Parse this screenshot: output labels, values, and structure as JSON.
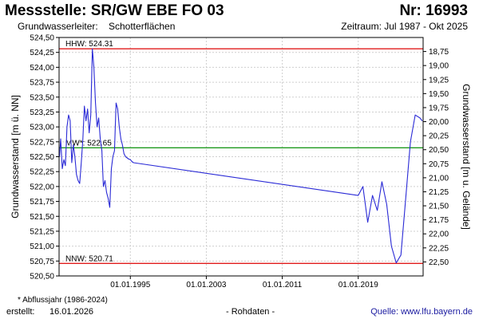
{
  "header": {
    "title": "Messstelle: SR/GW EBE FO 03",
    "station_no": "Nr: 16993",
    "aquifer_label": "Grundwasserleiter:",
    "aquifer_value": "Schotterflächen",
    "period": "Zeitraum: Jul 1987 - Okt 2025"
  },
  "footer": {
    "footnote": "* Abflussjahr (1986-2024)",
    "created_label": "erstellt:",
    "created_date": "16.01.2026",
    "data_type": "- Rohdaten -",
    "source": "Quelle: www.lfu.bayern.de"
  },
  "colors": {
    "series": "#2a2ad6",
    "hhw": "#e01b1b",
    "nnw": "#e01b1b",
    "mw": "#1f9a1f",
    "grid": "#cfcfcf",
    "axis": "#000000"
  },
  "chart_data": {
    "type": "line",
    "title": "",
    "ylabel": "Grundwasserstand [m ü. NN]",
    "ylabel_right": "Grundwasserstand [m u. Gelände]",
    "xlabel": "",
    "xlim": [
      "1987-07-01",
      "2025-10-31"
    ],
    "ylim": [
      520.5,
      524.5
    ],
    "ylim_right_depth": [
      22.75,
      18.5
    ],
    "grid": true,
    "y_ticks": [
      "524,50",
      "524,25",
      "524,00",
      "523,75",
      "523,50",
      "523,25",
      "523,00",
      "522,75",
      "522,50",
      "522,25",
      "522,00",
      "521,75",
      "521,50",
      "521,25",
      "521,00",
      "520,75",
      "520,50"
    ],
    "y_right_ticks": [
      "18,75",
      "19,00",
      "19,25",
      "19,50",
      "19,75",
      "20,00",
      "20,25",
      "20,50",
      "20,75",
      "21,00",
      "21,25",
      "21,50",
      "21,75",
      "22,00",
      "22,25",
      "22,50"
    ],
    "x_ticks": [
      {
        "date": "1995-01-01",
        "label": "01.01.1995"
      },
      {
        "date": "2003-01-01",
        "label": "01.01.2003"
      },
      {
        "date": "2011-01-01",
        "label": "01.01.2011"
      },
      {
        "date": "2019-01-01",
        "label": "01.01.2019"
      }
    ],
    "reference_lines": [
      {
        "key": "hhw",
        "label": "HHW: 524.31",
        "value": 524.31
      },
      {
        "key": "mw",
        "label": "MW*: 522.65",
        "value": 522.65
      },
      {
        "key": "nnw",
        "label": "NNW: 520.71",
        "value": 520.71
      }
    ],
    "series": [
      {
        "x": [
          "1987-07-15",
          "1987-09-01",
          "1987-11-01",
          "1988-01-01",
          "1988-03-01",
          "1988-05-01",
          "1988-07-01",
          "1988-09-01",
          "1988-11-01",
          "1989-01-01",
          "1989-03-01",
          "1989-05-01",
          "1989-07-01",
          "1989-09-01",
          "1989-11-01",
          "1990-01-01",
          "1990-03-01",
          "1990-05-01",
          "1990-07-01",
          "1990-09-01",
          "1990-11-01",
          "1991-01-01",
          "1991-03-01",
          "1991-05-01",
          "1991-07-01",
          "1991-09-01",
          "1991-11-01",
          "1992-01-01",
          "1992-03-01",
          "1992-05-01",
          "1992-07-01",
          "1992-09-01",
          "1992-11-01",
          "1993-01-01",
          "1993-03-01",
          "1993-05-01",
          "1993-07-01",
          "1993-09-01",
          "1993-11-01",
          "1994-01-01",
          "1994-03-01",
          "1994-05-01",
          "1994-07-01",
          "1994-09-01",
          "1994-11-01",
          "1995-01-01",
          "1995-03-01",
          "1995-05-01",
          "2019-01-01",
          "2019-07-01",
          "2020-01-01",
          "2020-07-01",
          "2021-01-01",
          "2021-07-01",
          "2022-01-01",
          "2022-07-01",
          "2023-01-01",
          "2023-07-01",
          "2024-01-01",
          "2024-07-01",
          "2025-01-01",
          "2025-07-01",
          "2025-10-01"
        ],
        "y": [
          522.5,
          522.8,
          522.3,
          522.45,
          522.35,
          523.0,
          523.2,
          523.1,
          522.4,
          522.7,
          522.5,
          522.2,
          522.1,
          522.05,
          522.4,
          522.8,
          523.35,
          523.1,
          523.3,
          522.9,
          523.2,
          524.31,
          524.0,
          523.4,
          523.0,
          523.15,
          522.8,
          522.6,
          522.0,
          522.1,
          521.9,
          521.8,
          521.65,
          522.3,
          522.5,
          522.6,
          523.4,
          523.3,
          523.0,
          522.8,
          522.7,
          522.55,
          522.5,
          522.48,
          522.46,
          522.45,
          522.42,
          522.4,
          521.85,
          522.0,
          521.4,
          521.85,
          521.6,
          522.08,
          521.7,
          521.0,
          520.72,
          520.85,
          521.8,
          522.75,
          523.2,
          523.15,
          523.1
        ]
      }
    ]
  }
}
